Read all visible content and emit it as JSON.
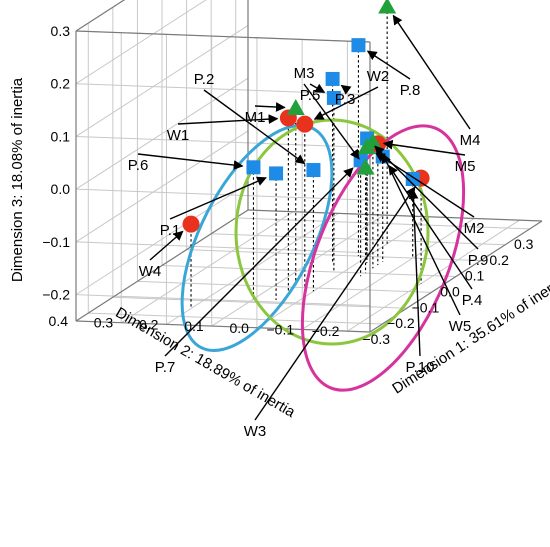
{
  "chart_data": {
    "type": "scatter",
    "title": "",
    "axes": {
      "x": {
        "label": "Dimension 1: 35.61% of inertia",
        "ticks": [
          "−0.3",
          "−0.2",
          "−0.1",
          "0.0",
          "0.1",
          "0.2",
          "0.3"
        ],
        "range": [
          -0.35,
          0.35
        ]
      },
      "y": {
        "label": "Dimension 2: 18.89% of inertia",
        "ticks": [
          "0.4",
          "0.3",
          "0.2",
          "0.1",
          "0.0",
          "−0.1",
          "−0.2"
        ],
        "range": [
          -0.25,
          0.4
        ]
      },
      "z": {
        "label": "Dimension 3: 18.08% of inertia",
        "ticks": [
          "0.3",
          "0.2",
          "0.1",
          "0.0",
          "−0.1",
          "−0.2"
        ],
        "range": [
          -0.25,
          0.3
        ]
      }
    },
    "grid": true,
    "series": [
      {
        "marker": "circle",
        "color": "#e8321e",
        "points": [
          {
            "label": "W1",
            "x": -0.13,
            "y": 0.05,
            "z": 0.08
          },
          {
            "label": "W2",
            "x": -0.1,
            "y": 0.03,
            "z": 0.06
          },
          {
            "label": "W3",
            "x": -0.05,
            "y": -0.2,
            "z": -0.05
          },
          {
            "label": "W4",
            "x": -0.25,
            "y": 0.2,
            "z": -0.09
          },
          {
            "label": "W5",
            "x": 0.05,
            "y": -0.05,
            "z": -0.02
          }
        ]
      },
      {
        "marker": "square",
        "color": "#1e8ce6",
        "points": [
          {
            "label": "P.1",
            "x": -0.18,
            "y": 0.05,
            "z": -0.01
          },
          {
            "label": "P.2",
            "x": -0.12,
            "y": 0.0,
            "z": -0.02
          },
          {
            "label": "P.3",
            "x": 0.05,
            "y": 0.05,
            "z": 0.1
          },
          {
            "label": "P.4",
            "x": 0.07,
            "y": -0.05,
            "z": -0.05
          },
          {
            "label": "P.5",
            "x": 0.0,
            "y": 0.02,
            "z": 0.08
          },
          {
            "label": "P.6",
            "x": -0.18,
            "y": 0.1,
            "z": 0.0
          },
          {
            "label": "P.7",
            "x": -0.02,
            "y": -0.05,
            "z": -0.03
          },
          {
            "label": "P.8",
            "x": 0.1,
            "y": 0.02,
            "z": 0.15
          },
          {
            "label": "P.9",
            "x": 0.08,
            "y": -0.01,
            "z": -0.02
          },
          {
            "label": "P.10",
            "x": 0.1,
            "y": -0.1,
            "z": -0.1
          }
        ]
      },
      {
        "marker": "triangle",
        "color": "#22a03c",
        "points": [
          {
            "label": "M1",
            "x": -0.1,
            "y": 0.05,
            "z": 0.09
          },
          {
            "label": "M2",
            "x": 0.06,
            "y": -0.02,
            "z": -0.03
          },
          {
            "label": "M3",
            "x": 0.0,
            "y": -0.05,
            "z": -0.05
          },
          {
            "label": "M4",
            "x": 0.18,
            "y": 0.0,
            "z": 0.2
          },
          {
            "label": "M5",
            "x": 0.03,
            "y": -0.05,
            "z": -0.01
          }
        ]
      }
    ],
    "groups": [
      {
        "color": "#3aa6d8"
      },
      {
        "color": "#8cc63e"
      },
      {
        "color": "#d6339e"
      }
    ]
  }
}
